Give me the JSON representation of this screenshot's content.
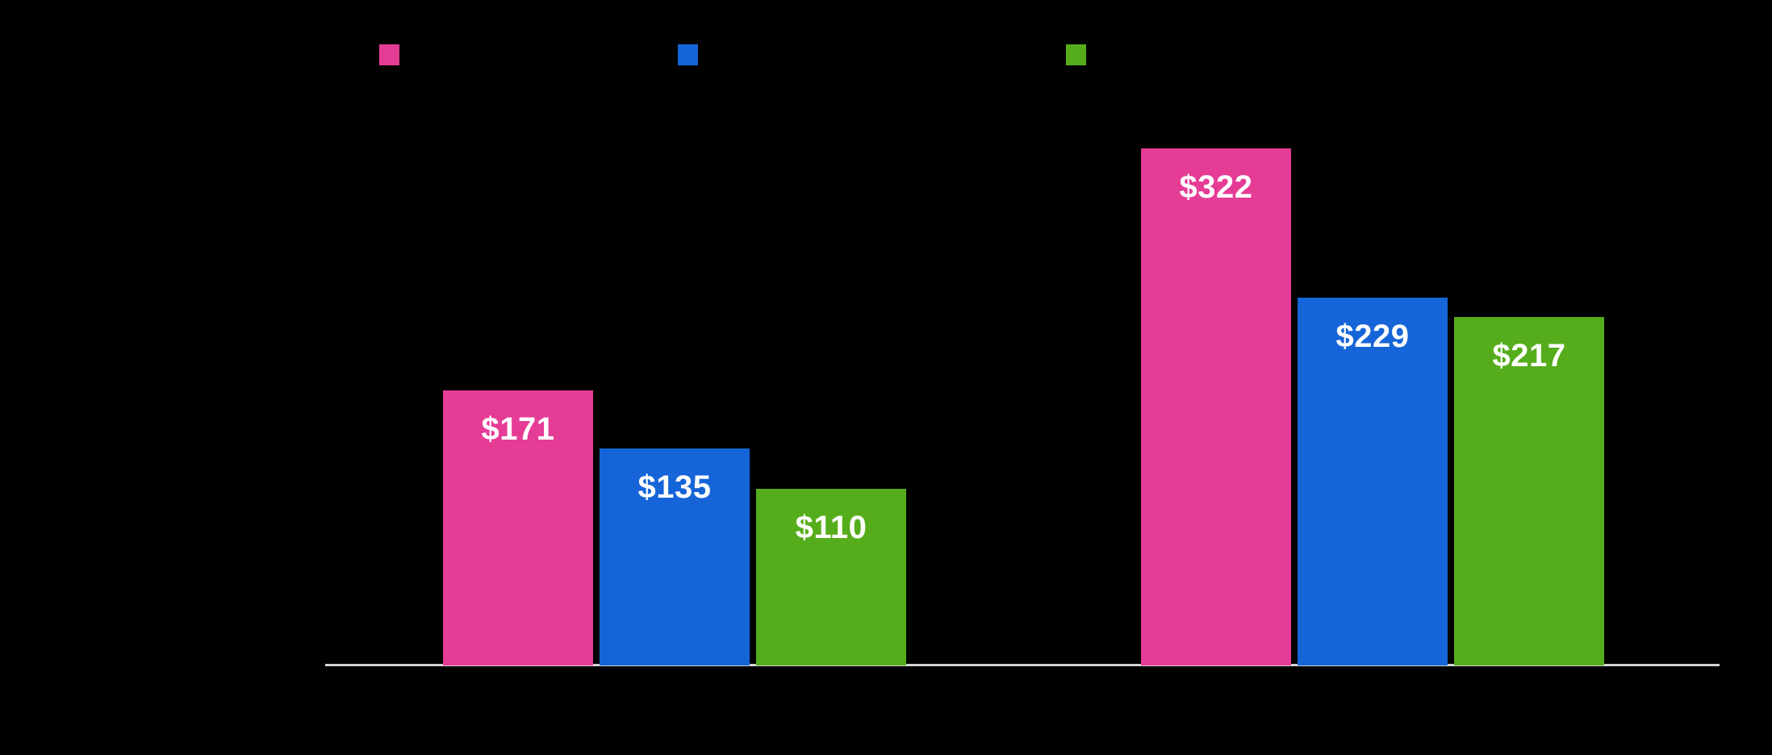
{
  "chart_data": {
    "type": "bar",
    "layout_style": "grouped",
    "title": "",
    "background_color": "#000000",
    "categories": [
      "",
      ""
    ],
    "series": [
      {
        "name": "",
        "color": "#E53C95",
        "values": [
          171,
          322
        ],
        "data_labels": [
          "$171",
          "$322"
        ]
      },
      {
        "name": "",
        "color": "#1565D8",
        "values": [
          135,
          229
        ],
        "data_labels": [
          "$135",
          "$229"
        ]
      },
      {
        "name": "",
        "color": "#56AD1C",
        "values": [
          110,
          217
        ],
        "data_labels": [
          "$110",
          "$217"
        ]
      }
    ],
    "value_prefix": "$",
    "ylim": [
      0,
      345
    ],
    "grid": false,
    "legend_position": "top",
    "legend_swatch_colors": [
      "#E53C95",
      "#1565D8",
      "#56AD1C"
    ],
    "axis_line_color": "#D4D4D4",
    "data_label_color": "#FFFFFF",
    "notes": "Chart title, legend text, and category axis labels are rendered black-on-black and are not visible; only swatches, bars, value labels, and the baseline are visible."
  }
}
